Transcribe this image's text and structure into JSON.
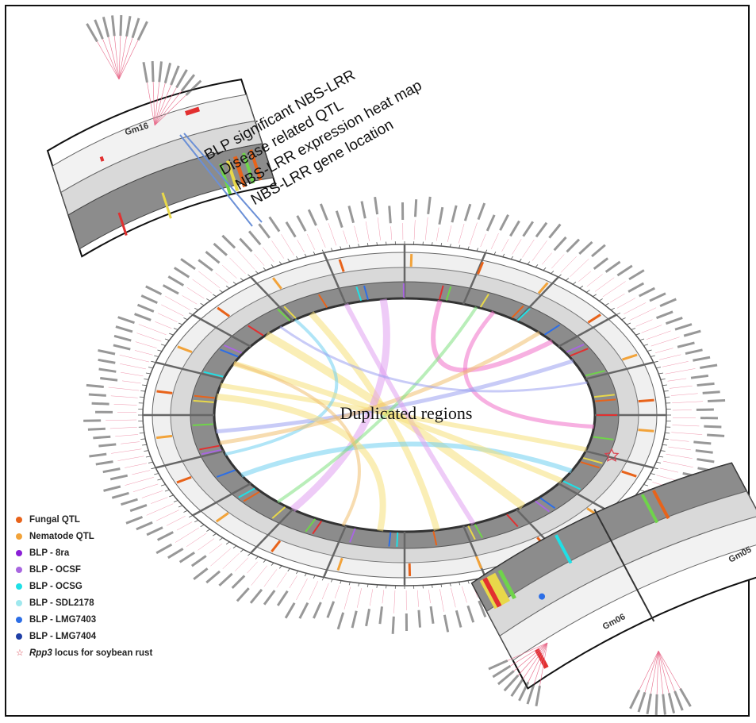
{
  "center_label": "Duplicated regions",
  "track_labels": [
    "BLP significant NBS-LRR",
    "Disease related QTL",
    "NBS-LRR expression heat map",
    "NBS-LRR gene location"
  ],
  "inset_labels": {
    "top": "Gm16",
    "bottom_left": "Gm06",
    "bottom_right": "Gm05"
  },
  "legend": [
    {
      "label": "Fungal QTL",
      "color": "#e8631a"
    },
    {
      "label": "Nematode QTL",
      "color": "#f2a33a"
    },
    {
      "label": "BLP - 8ra",
      "color": "#8a1fd6"
    },
    {
      "label": "BLP - OCSF",
      "color": "#a866e0"
    },
    {
      "label": "BLP - OCSG",
      "color": "#1fe0e6"
    },
    {
      "label": "BLP - SDL2178",
      "color": "#9fe8ee"
    },
    {
      "label": "BLP - LMG7403",
      "color": "#2c6ee6"
    },
    {
      "label": "BLP - LMG7404",
      "color": "#1f3fa6"
    },
    {
      "label_italic": "Rpp3",
      "label": " locus for soybean rust",
      "color": "#d9414e",
      "icon": "star-outline"
    }
  ],
  "colors": {
    "outer_track": "#f0f0f0",
    "mid_track": "#d9d9d9",
    "inner_track": "#8c8c8c",
    "link_colors": [
      "#f5e07a",
      "#e0a0f0",
      "#f070c8",
      "#70d0f0",
      "#9aa0f0",
      "#80e080",
      "#f0c070"
    ]
  }
}
